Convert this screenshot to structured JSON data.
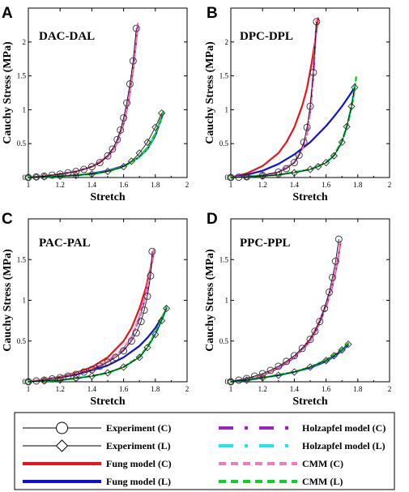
{
  "legend": [
    {
      "key": "exp_c",
      "label": "Experiment (C)",
      "style": "exp-circle",
      "color": "#000000"
    },
    {
      "key": "exp_l",
      "label": "Experiment (L)",
      "style": "exp-diamond",
      "color": "#000000"
    },
    {
      "key": "fung_c",
      "label": "Fung model (C)",
      "style": "solid",
      "color": "#e8141b"
    },
    {
      "key": "fung_l",
      "label": "Fung model (L)",
      "style": "solid",
      "color": "#1010d8"
    },
    {
      "key": "holz_c",
      "label": "Holzapfel model (C)",
      "style": "dashdot",
      "color": "#a020c8"
    },
    {
      "key": "holz_l",
      "label": "Holzapfel model (L)",
      "style": "dashdot",
      "color": "#20e8e8"
    },
    {
      "key": "cmm_c",
      "label": "CMM (C)",
      "style": "dash",
      "color": "#f07cc0"
    },
    {
      "key": "cmm_l",
      "label": "CMM (L)",
      "style": "dash",
      "color": "#10d020"
    }
  ],
  "chart_data": [
    {
      "type": "line",
      "panel": "A",
      "title": "DAC-DAL",
      "xlabel": "Stretch",
      "ylabel": "Cauchy Stress (MPa)",
      "xlim": [
        1,
        2
      ],
      "ylim": [
        0,
        2.5
      ],
      "xticks": [
        "1",
        "1.2",
        "1.4",
        "1.6",
        "1.8",
        "2"
      ],
      "yticks": [
        "0",
        "0.5",
        "1",
        "1.5",
        "2"
      ],
      "series": [
        {
          "name": "Experiment (C)",
          "key": "exp_c",
          "x": [
            1.0,
            1.05,
            1.1,
            1.15,
            1.2,
            1.25,
            1.3,
            1.35,
            1.4,
            1.45,
            1.5,
            1.53,
            1.56,
            1.58,
            1.6,
            1.62,
            1.64,
            1.66,
            1.68
          ],
          "y": [
            0,
            0.01,
            0.02,
            0.035,
            0.05,
            0.07,
            0.09,
            0.12,
            0.16,
            0.22,
            0.32,
            0.42,
            0.56,
            0.7,
            0.88,
            1.1,
            1.38,
            1.72,
            2.2
          ]
        },
        {
          "name": "Experiment (L)",
          "key": "exp_l",
          "x": [
            1.0,
            1.05,
            1.1,
            1.2,
            1.3,
            1.4,
            1.5,
            1.6,
            1.65,
            1.7,
            1.75,
            1.8,
            1.84
          ],
          "y": [
            0,
            0.005,
            0.01,
            0.02,
            0.03,
            0.05,
            0.09,
            0.16,
            0.24,
            0.36,
            0.52,
            0.74,
            0.95
          ]
        },
        {
          "name": "Fung model (C)",
          "key": "fung_c",
          "x": [
            1.0,
            1.1,
            1.2,
            1.3,
            1.4,
            1.45,
            1.5,
            1.55,
            1.6,
            1.63,
            1.66,
            1.69
          ],
          "y": [
            0,
            0.02,
            0.05,
            0.09,
            0.16,
            0.22,
            0.32,
            0.48,
            0.8,
            1.12,
            1.6,
            2.25
          ]
        },
        {
          "name": "Fung model (L)",
          "key": "fung_l",
          "x": [
            1.0,
            1.1,
            1.2,
            1.3,
            1.4,
            1.5,
            1.6,
            1.7,
            1.75,
            1.8,
            1.85
          ],
          "y": [
            0,
            0.01,
            0.02,
            0.035,
            0.06,
            0.1,
            0.17,
            0.3,
            0.42,
            0.62,
            0.95
          ]
        },
        {
          "name": "Holzapfel model (C)",
          "key": "holz_c",
          "x": [
            1.0,
            1.1,
            1.2,
            1.3,
            1.4,
            1.5,
            1.55,
            1.6,
            1.63,
            1.66,
            1.69
          ],
          "y": [
            0,
            0.02,
            0.05,
            0.09,
            0.16,
            0.31,
            0.46,
            0.8,
            1.12,
            1.62,
            2.25
          ]
        },
        {
          "name": "Holzapfel model (L)",
          "key": "holz_l",
          "x": [
            1.0,
            1.2,
            1.4,
            1.5,
            1.6,
            1.7,
            1.75,
            1.8,
            1.85
          ],
          "y": [
            0,
            0.02,
            0.05,
            0.09,
            0.16,
            0.3,
            0.43,
            0.64,
            0.96
          ]
        },
        {
          "name": "CMM (C)",
          "key": "cmm_c",
          "x": [
            1.0,
            1.1,
            1.2,
            1.3,
            1.4,
            1.5,
            1.55,
            1.6,
            1.63,
            1.66,
            1.69
          ],
          "y": [
            0,
            0.02,
            0.05,
            0.09,
            0.16,
            0.32,
            0.47,
            0.82,
            1.14,
            1.64,
            2.27
          ]
        },
        {
          "name": "CMM (L)",
          "key": "cmm_l",
          "x": [
            1.0,
            1.2,
            1.4,
            1.5,
            1.6,
            1.7,
            1.75,
            1.8,
            1.85
          ],
          "y": [
            0,
            0.02,
            0.05,
            0.09,
            0.16,
            0.31,
            0.44,
            0.65,
            0.97
          ]
        }
      ]
    },
    {
      "type": "line",
      "panel": "B",
      "title": "DPC-DPL",
      "xlabel": "",
      "ylabel": "",
      "xlim": [
        1,
        2
      ],
      "ylim": [
        0,
        2.5
      ],
      "xticks": [
        "1",
        "1.2",
        "1.4",
        "1.6",
        "1.8",
        "2"
      ],
      "yticks": [
        "0",
        "0.5",
        "1",
        "1.5",
        "2"
      ],
      "series": [
        {
          "name": "Experiment (C)",
          "key": "exp_c",
          "x": [
            1.0,
            1.05,
            1.1,
            1.2,
            1.3,
            1.35,
            1.4,
            1.43,
            1.46,
            1.48,
            1.5,
            1.52,
            1.54
          ],
          "y": [
            0,
            0.005,
            0.01,
            0.03,
            0.08,
            0.13,
            0.22,
            0.33,
            0.52,
            0.74,
            1.05,
            1.55,
            2.3
          ]
        },
        {
          "name": "Experiment (L)",
          "key": "exp_l",
          "x": [
            1.0,
            1.1,
            1.2,
            1.3,
            1.4,
            1.5,
            1.55,
            1.6,
            1.65,
            1.7,
            1.73,
            1.76,
            1.78
          ],
          "y": [
            0,
            0.01,
            0.02,
            0.04,
            0.07,
            0.12,
            0.16,
            0.22,
            0.32,
            0.52,
            0.75,
            1.05,
            1.33
          ]
        },
        {
          "name": "Fung model (C)",
          "key": "fung_c",
          "x": [
            1.0,
            1.1,
            1.2,
            1.3,
            1.35,
            1.4,
            1.45,
            1.48,
            1.51,
            1.53,
            1.55
          ],
          "y": [
            0,
            0.06,
            0.17,
            0.36,
            0.52,
            0.74,
            1.06,
            1.32,
            1.7,
            2.0,
            2.35
          ]
        },
        {
          "name": "Fung model (L)",
          "key": "fung_l",
          "x": [
            1.0,
            1.1,
            1.2,
            1.3,
            1.4,
            1.5,
            1.6,
            1.65,
            1.7,
            1.75,
            1.78
          ],
          "y": [
            0,
            0.04,
            0.1,
            0.2,
            0.34,
            0.52,
            0.76,
            0.9,
            1.05,
            1.22,
            1.33
          ]
        },
        {
          "name": "Holzapfel model (C)",
          "key": "holz_c",
          "x": [
            1.0,
            1.2,
            1.3,
            1.4,
            1.45,
            1.48,
            1.5,
            1.52,
            1.54
          ],
          "y": [
            0,
            0.03,
            0.08,
            0.22,
            0.42,
            0.64,
            0.98,
            1.5,
            2.3
          ]
        },
        {
          "name": "Holzapfel model (L)",
          "key": "holz_l",
          "x": [
            1.0,
            1.3,
            1.5,
            1.6,
            1.65,
            1.7,
            1.73,
            1.76,
            1.78
          ],
          "y": [
            0,
            0.04,
            0.12,
            0.22,
            0.32,
            0.52,
            0.74,
            1.06,
            1.36
          ]
        },
        {
          "name": "CMM (C)",
          "key": "cmm_c",
          "x": [
            1.0,
            1.2,
            1.3,
            1.4,
            1.45,
            1.48,
            1.5,
            1.52,
            1.54
          ],
          "y": [
            0,
            0.03,
            0.08,
            0.22,
            0.42,
            0.66,
            1.0,
            1.52,
            2.32
          ]
        },
        {
          "name": "CMM (L)",
          "key": "cmm_l",
          "x": [
            1.0,
            1.3,
            1.5,
            1.6,
            1.65,
            1.7,
            1.74,
            1.77,
            1.79
          ],
          "y": [
            0,
            0.04,
            0.12,
            0.22,
            0.33,
            0.54,
            0.82,
            1.15,
            1.48
          ]
        }
      ]
    },
    {
      "type": "line",
      "panel": "C",
      "title": "PAC-PAL",
      "xlabel": "Stretch",
      "ylabel": "Cauchy Stress (MPa)",
      "xlim": [
        1,
        2
      ],
      "ylim": [
        0,
        2
      ],
      "xticks": [
        "1",
        "1.2",
        "1.4",
        "1.6",
        "1.8",
        "2"
      ],
      "yticks": [
        "0",
        "0.5",
        "1",
        "1.5"
      ],
      "series": [
        {
          "name": "Experiment (C)",
          "key": "exp_c",
          "x": [
            1.0,
            1.05,
            1.1,
            1.15,
            1.2,
            1.25,
            1.3,
            1.35,
            1.4,
            1.45,
            1.5,
            1.55,
            1.6,
            1.65,
            1.68,
            1.71,
            1.73,
            1.75,
            1.77,
            1.78
          ],
          "y": [
            0,
            0.01,
            0.02,
            0.035,
            0.05,
            0.07,
            0.09,
            0.12,
            0.15,
            0.19,
            0.24,
            0.3,
            0.38,
            0.5,
            0.6,
            0.74,
            0.88,
            1.05,
            1.3,
            1.6
          ]
        },
        {
          "name": "Experiment (L)",
          "key": "exp_l",
          "x": [
            1.0,
            1.1,
            1.2,
            1.3,
            1.4,
            1.5,
            1.6,
            1.7,
            1.75,
            1.8,
            1.84,
            1.87
          ],
          "y": [
            0,
            0.01,
            0.02,
            0.04,
            0.07,
            0.11,
            0.18,
            0.3,
            0.42,
            0.58,
            0.75,
            0.9
          ]
        },
        {
          "name": "Fung model (C)",
          "key": "fung_c",
          "x": [
            1.0,
            1.1,
            1.2,
            1.3,
            1.4,
            1.5,
            1.6,
            1.65,
            1.7,
            1.74,
            1.77,
            1.79
          ],
          "y": [
            0,
            0.03,
            0.06,
            0.11,
            0.18,
            0.3,
            0.5,
            0.66,
            0.9,
            1.15,
            1.4,
            1.6
          ]
        },
        {
          "name": "Fung model (L)",
          "key": "fung_l",
          "x": [
            1.0,
            1.1,
            1.2,
            1.3,
            1.4,
            1.5,
            1.6,
            1.7,
            1.75,
            1.8,
            1.85,
            1.87
          ],
          "y": [
            0,
            0.02,
            0.05,
            0.09,
            0.14,
            0.2,
            0.3,
            0.44,
            0.54,
            0.66,
            0.82,
            0.9
          ]
        },
        {
          "name": "Holzapfel model (C)",
          "key": "holz_c",
          "x": [
            1.0,
            1.2,
            1.4,
            1.5,
            1.6,
            1.65,
            1.7,
            1.74,
            1.77,
            1.79
          ],
          "y": [
            0,
            0.05,
            0.15,
            0.25,
            0.4,
            0.54,
            0.78,
            1.06,
            1.36,
            1.6
          ]
        },
        {
          "name": "Holzapfel model (L)",
          "key": "holz_l",
          "x": [
            1.0,
            1.2,
            1.4,
            1.5,
            1.6,
            1.7,
            1.75,
            1.8,
            1.84,
            1.87
          ],
          "y": [
            0,
            0.02,
            0.07,
            0.11,
            0.18,
            0.3,
            0.42,
            0.58,
            0.75,
            0.9
          ]
        },
        {
          "name": "CMM (C)",
          "key": "cmm_c",
          "x": [
            1.0,
            1.2,
            1.4,
            1.5,
            1.6,
            1.65,
            1.7,
            1.74,
            1.77,
            1.79
          ],
          "y": [
            0,
            0.05,
            0.15,
            0.25,
            0.41,
            0.55,
            0.8,
            1.08,
            1.38,
            1.62
          ]
        },
        {
          "name": "CMM (L)",
          "key": "cmm_l",
          "x": [
            1.0,
            1.2,
            1.4,
            1.5,
            1.6,
            1.7,
            1.75,
            1.8,
            1.84,
            1.87
          ],
          "y": [
            0,
            0.02,
            0.07,
            0.11,
            0.18,
            0.31,
            0.43,
            0.6,
            0.77,
            0.92
          ]
        }
      ]
    },
    {
      "type": "line",
      "panel": "D",
      "title": "PPC-PPL",
      "xlabel": "Stretch",
      "ylabel": "Cauchy Stress (MPa)",
      "xlim": [
        1,
        2
      ],
      "ylim": [
        0,
        2
      ],
      "xticks": [
        "1",
        "1.2",
        "1.4",
        "1.6",
        "1.8",
        "2"
      ],
      "yticks": [
        "0",
        "0.5",
        "1",
        "1.5"
      ],
      "series": [
        {
          "name": "Experiment (C)",
          "key": "exp_c",
          "x": [
            1.0,
            1.05,
            1.1,
            1.15,
            1.2,
            1.25,
            1.3,
            1.35,
            1.4,
            1.45,
            1.5,
            1.53,
            1.56,
            1.59,
            1.62,
            1.64,
            1.66,
            1.68
          ],
          "y": [
            0,
            0.02,
            0.04,
            0.07,
            0.1,
            0.14,
            0.19,
            0.25,
            0.32,
            0.41,
            0.52,
            0.62,
            0.74,
            0.9,
            1.1,
            1.28,
            1.48,
            1.75
          ]
        },
        {
          "name": "Experiment (L)",
          "key": "exp_l",
          "x": [
            1.0,
            1.1,
            1.2,
            1.3,
            1.4,
            1.5,
            1.6,
            1.65,
            1.7,
            1.74
          ],
          "y": [
            0,
            0.02,
            0.05,
            0.08,
            0.12,
            0.18,
            0.26,
            0.32,
            0.39,
            0.46
          ]
        },
        {
          "name": "Fung model (C)",
          "key": "fung_c",
          "x": [
            1.0,
            1.1,
            1.2,
            1.3,
            1.4,
            1.5,
            1.55,
            1.6,
            1.64,
            1.67,
            1.69
          ],
          "y": [
            0,
            0.03,
            0.08,
            0.17,
            0.3,
            0.52,
            0.7,
            0.95,
            1.2,
            1.45,
            1.7
          ]
        },
        {
          "name": "Fung model (L)",
          "key": "fung_l",
          "x": [
            1.0,
            1.1,
            1.2,
            1.3,
            1.4,
            1.5,
            1.6,
            1.65,
            1.7,
            1.74
          ],
          "y": [
            0,
            0.02,
            0.05,
            0.08,
            0.12,
            0.17,
            0.25,
            0.31,
            0.38,
            0.45
          ]
        },
        {
          "name": "Holzapfel model (C)",
          "key": "holz_c",
          "x": [
            1.0,
            1.2,
            1.3,
            1.4,
            1.5,
            1.55,
            1.6,
            1.64,
            1.67,
            1.69
          ],
          "y": [
            0,
            0.08,
            0.17,
            0.3,
            0.5,
            0.68,
            0.92,
            1.18,
            1.45,
            1.7
          ]
        },
        {
          "name": "Holzapfel model (L)",
          "key": "holz_l",
          "x": [
            1.0,
            1.2,
            1.4,
            1.5,
            1.6,
            1.65,
            1.7,
            1.74
          ],
          "y": [
            0,
            0.05,
            0.12,
            0.18,
            0.26,
            0.32,
            0.39,
            0.46
          ]
        },
        {
          "name": "CMM (C)",
          "key": "cmm_c",
          "x": [
            1.0,
            1.2,
            1.3,
            1.4,
            1.5,
            1.55,
            1.6,
            1.64,
            1.67,
            1.69
          ],
          "y": [
            0,
            0.08,
            0.18,
            0.31,
            0.51,
            0.69,
            0.94,
            1.2,
            1.47,
            1.72
          ]
        },
        {
          "name": "CMM (L)",
          "key": "cmm_l",
          "x": [
            1.0,
            1.2,
            1.4,
            1.5,
            1.6,
            1.65,
            1.7,
            1.74
          ],
          "y": [
            0,
            0.05,
            0.12,
            0.18,
            0.27,
            0.33,
            0.4,
            0.47
          ]
        }
      ]
    }
  ]
}
